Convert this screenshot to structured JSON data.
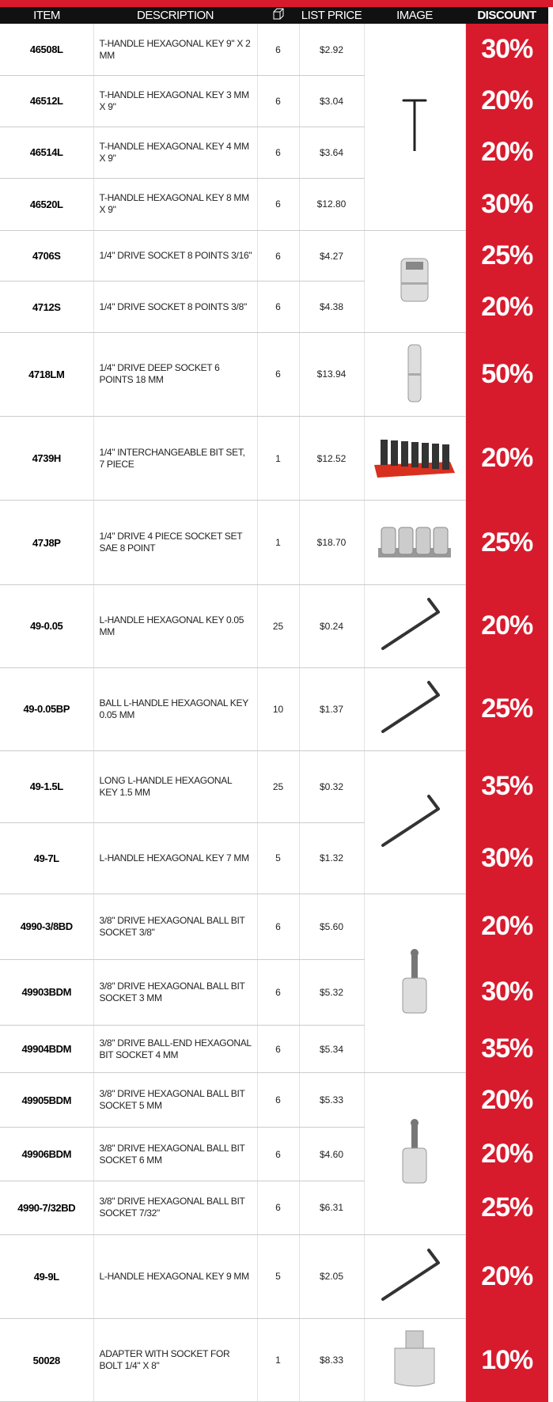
{
  "table": {
    "header": [
      "ITEM",
      "DESCRIPTION",
      "LIST PRICE",
      "IMAGE",
      "DISCOUNT"
    ],
    "rows": [
      [
        "46508L",
        "T-HANDLE HEXAGONAL KEY 9\" X 2 MM",
        6,
        "$2.92",
        "30%"
      ],
      [
        "46512L",
        "T-HANDLE HEXAGONAL KEY 3 MM X 9\"",
        6,
        "$3.04",
        "20%"
      ],
      [
        "46514L",
        "T-HANDLE HEXAGONAL KEY 4 MM X 9\"",
        6,
        "$3.64",
        "20%"
      ],
      [
        "46520L",
        "T-HANDLE HEXAGONAL KEY 8 MM X 9\"",
        6,
        "$12.80",
        "30%"
      ],
      [
        "4706S",
        "1/4\" DRIVE SOCKET 8 POINTS 3/16\"",
        6,
        "$4.27",
        "25%"
      ],
      [
        "4712S",
        "1/4\" DRIVE SOCKET 8 POINTS 3/8\"",
        6,
        "$4.38",
        "20%"
      ],
      [
        "4718LM",
        "1/4\" DRIVE DEEP SOCKET 6 POINTS 18 MM",
        6,
        "$13.94",
        "50%"
      ],
      [
        "4739H",
        "1/4\" INTERCHANGEABLE BIT SET, 7 PIECE",
        1,
        "$12.52",
        "20%"
      ],
      [
        "47J8P",
        "1/4\" DRIVE 4 PIECE SOCKET SET SAE 8 POINT",
        1,
        "$18.70",
        "25%"
      ],
      [
        "49-0.05",
        "L-HANDLE HEXAGONAL KEY 0.05 MM",
        25,
        "$0.24",
        "20%"
      ],
      [
        "49-0.05BP",
        "BALL L-HANDLE HEXAGONAL KEY 0.05 MM",
        10,
        "$1.37",
        "25%"
      ],
      [
        "49-1.5L",
        "LONG L-HANDLE HEXAGONAL KEY 1.5 MM",
        25,
        "$0.32",
        "35%"
      ],
      [
        "49-7L",
        "L-HANDLE HEXAGONAL KEY 7 MM",
        5,
        "$1.32",
        "30%"
      ],
      [
        "4990-3/8BD",
        "3/8\" DRIVE HEXAGONAL BALL BIT SOCKET 3/8\"",
        6,
        "$5.60",
        "20%"
      ],
      [
        "49903BDM",
        "3/8\" DRIVE HEXAGONAL BALL BIT SOCKET 3 MM",
        6,
        "$5.32",
        "30%"
      ],
      [
        "49904BDM",
        "3/8\" DRIVE BALL-END HEXAGONAL BIT SOCKET 4 MM",
        6,
        "$5.34",
        "35%"
      ],
      [
        "49905BDM",
        "3/8\" DRIVE HEXAGONAL BALL BIT SOCKET 5 MM",
        6,
        "$5.33",
        "20%"
      ],
      [
        "49906BDM",
        "3/8\" DRIVE HEXAGONAL BALL BIT SOCKET 6 MM",
        6,
        "$4.60",
        "20%"
      ],
      [
        "4990-7/32BD",
        "3/8\" DRIVE HEXAGONAL BALL BIT SOCKET 7/32\"",
        6,
        "$6.31",
        "25%"
      ],
      [
        "49-9L",
        "L-HANDLE HEXAGONAL KEY 9 MM",
        5,
        "$2.05",
        "20%"
      ],
      [
        "50028",
        "ADAPTER WITH SOCKET FOR BOLT 1/4\" X 8\"",
        1,
        "$8.33",
        "10%"
      ]
    ]
  }
}
